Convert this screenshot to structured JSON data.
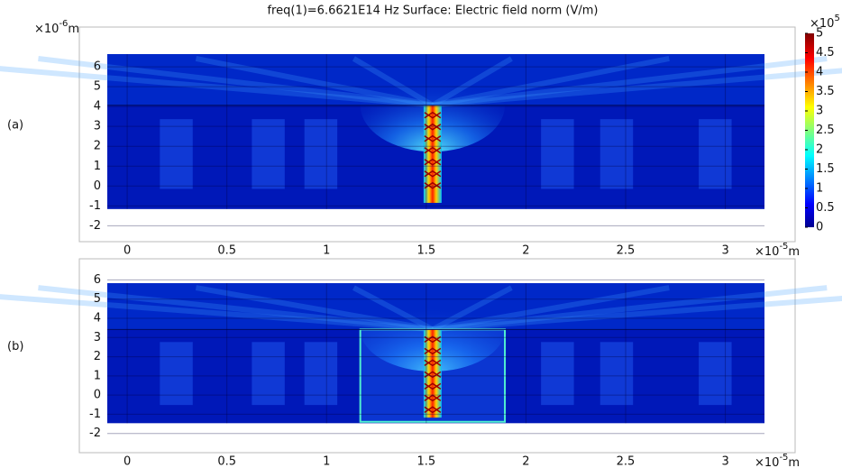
{
  "chart_data": {
    "type": "heatmap",
    "title": "freq(1)=6.6621E14 Hz   Surface: Electric field norm (V/m)",
    "x_scale": {
      "base": "×10",
      "exp": "-5",
      "unit": "m"
    },
    "y_scale": {
      "base": "×10",
      "exp": "-6",
      "unit": "m"
    },
    "colorbar": {
      "base": "×10",
      "exp": "5",
      "lim": [
        0,
        5
      ],
      "ticks": [
        0,
        0.5,
        1,
        1.5,
        2,
        2.5,
        3,
        3.5,
        4,
        4.5,
        5
      ],
      "colormap": "jet"
    },
    "panels": [
      {
        "label": "(a)",
        "xlim": [
          -0.24,
          3.35
        ],
        "ylim": [
          -2.8,
          8.0
        ],
        "xticks": [
          0,
          0.5,
          1,
          1.5,
          2,
          2.5,
          3
        ],
        "yticks": [
          -2,
          -1,
          0,
          1,
          2,
          3,
          4,
          5,
          6
        ]
      },
      {
        "label": "(b)",
        "xlim": [
          -0.24,
          3.35
        ],
        "ylim": [
          -3.0,
          7.1
        ],
        "xticks": [
          0,
          0.5,
          1,
          1.5,
          2,
          2.5,
          3
        ],
        "yticks": [
          -2,
          -1,
          0,
          1,
          2,
          3,
          4,
          5,
          6
        ]
      }
    ]
  }
}
